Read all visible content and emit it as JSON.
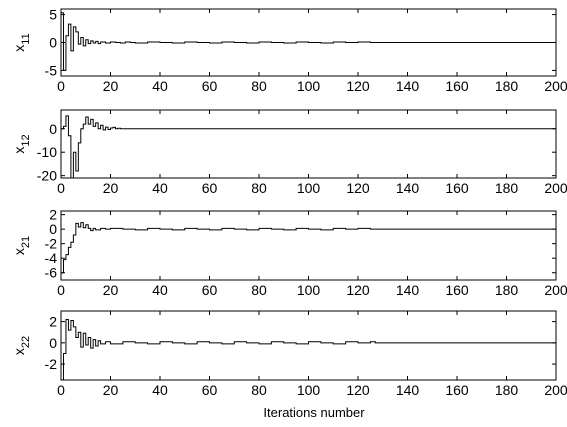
{
  "chart_data": [
    {
      "type": "line",
      "ylabel": "x",
      "ylabel_sub": "11",
      "xlim": [
        0,
        200
      ],
      "ylim": [
        -6,
        6
      ],
      "xticks": [
        0,
        20,
        40,
        60,
        80,
        100,
        120,
        140,
        160,
        180,
        200
      ],
      "yticks": [
        -5,
        0,
        5
      ],
      "grid": false,
      "series": [
        {
          "style": "stairs",
          "x": [
            0,
            1,
            2,
            3,
            4,
            5,
            6,
            7,
            8,
            9,
            10,
            11,
            12,
            13,
            14,
            15,
            16,
            18,
            20,
            22,
            24,
            26,
            28,
            30,
            35,
            40,
            45,
            50,
            55,
            60,
            65,
            70,
            75,
            80,
            85,
            90,
            95,
            100,
            105,
            110,
            115,
            120,
            125,
            127,
            200
          ],
          "y": [
            5.3,
            -5.0,
            1.2,
            3.3,
            -1.5,
            2.8,
            1.9,
            -0.3,
            0.9,
            -0.6,
            0.5,
            -0.2,
            0.3,
            -0.1,
            0.2,
            -0.2,
            0.1,
            -0.1,
            0.1,
            0,
            -0.1,
            0.1,
            0,
            -0.1,
            0.1,
            0,
            -0.1,
            0.1,
            0,
            -0.1,
            0.1,
            0,
            -0.1,
            0.1,
            0,
            -0.1,
            0.1,
            0,
            -0.1,
            0.1,
            0,
            0.1,
            0,
            0,
            0
          ]
        }
      ]
    },
    {
      "type": "line",
      "ylabel": "x",
      "ylabel_sub": "12",
      "xlim": [
        0,
        200
      ],
      "ylim": [
        -21,
        8
      ],
      "xticks": [
        0,
        20,
        40,
        60,
        80,
        100,
        120,
        140,
        160,
        180,
        200
      ],
      "yticks": [
        -20,
        -10,
        0
      ],
      "grid": false,
      "series": [
        {
          "style": "stairs",
          "x": [
            0,
            1,
            2,
            3,
            4,
            5,
            6,
            7,
            8,
            9,
            10,
            11,
            12,
            13,
            14,
            15,
            16,
            17,
            18,
            19,
            20,
            21,
            22,
            23,
            24,
            200
          ],
          "y": [
            0,
            1,
            5.5,
            -3,
            -21,
            -10,
            -18,
            -6,
            0,
            2,
            5,
            2,
            4,
            1,
            2.5,
            0,
            1.5,
            -0.5,
            0.7,
            -0.3,
            0.3,
            0.6,
            0,
            0.2,
            0,
            0
          ]
        }
      ]
    },
    {
      "type": "line",
      "ylabel": "x",
      "ylabel_sub": "21",
      "xlim": [
        0,
        200
      ],
      "ylim": [
        -7,
        2.5
      ],
      "xticks": [
        0,
        20,
        40,
        60,
        80,
        100,
        120,
        140,
        160,
        180,
        200
      ],
      "yticks": [
        -6,
        -4,
        -2,
        0,
        2
      ],
      "grid": false,
      "series": [
        {
          "style": "stairs",
          "x": [
            0,
            1,
            2,
            3,
            4,
            5,
            6,
            7,
            8,
            9,
            10,
            11,
            12,
            13,
            14,
            16,
            18,
            20,
            25,
            30,
            35,
            40,
            45,
            50,
            55,
            60,
            65,
            70,
            75,
            80,
            85,
            90,
            95,
            100,
            105,
            110,
            115,
            120,
            125,
            127,
            200
          ],
          "y": [
            -6.0,
            -4.2,
            -3.5,
            -2.5,
            -1.8,
            -0.8,
            0.8,
            0.3,
            0.9,
            0.2,
            0.6,
            0.1,
            -0.2,
            0.1,
            -0.1,
            0.1,
            0,
            0.1,
            0,
            -0.1,
            0.1,
            0,
            -0.1,
            0.1,
            0,
            -0.1,
            0.1,
            0,
            -0.1,
            0.1,
            0,
            -0.1,
            0.1,
            0,
            -0.1,
            0.1,
            0,
            0.1,
            0,
            0,
            0
          ]
        }
      ]
    },
    {
      "type": "line",
      "ylabel": "x",
      "ylabel_sub": "22",
      "xlim": [
        0,
        200
      ],
      "ylim": [
        -3.5,
        3
      ],
      "xticks": [
        0,
        20,
        40,
        60,
        80,
        100,
        120,
        140,
        160,
        180,
        200
      ],
      "yticks": [
        -2,
        0,
        2
      ],
      "grid": false,
      "xlabel": "Iterations number",
      "series": [
        {
          "style": "stairs",
          "x": [
            0,
            1,
            2,
            3,
            4,
            5,
            6,
            7,
            8,
            9,
            10,
            11,
            12,
            13,
            14,
            15,
            16,
            18,
            20,
            25,
            30,
            35,
            40,
            45,
            50,
            55,
            60,
            65,
            70,
            75,
            80,
            85,
            90,
            95,
            100,
            105,
            110,
            115,
            120,
            125,
            127,
            200
          ],
          "y": [
            -3.5,
            -1.0,
            2.2,
            1.2,
            2.1,
            1.5,
            0.5,
            1.0,
            -0.4,
            0.9,
            -0.2,
            0.5,
            -0.5,
            0.3,
            -0.3,
            0.2,
            -0.1,
            0.1,
            -0.1,
            0.1,
            0,
            -0.1,
            0.1,
            0,
            -0.1,
            0.1,
            0,
            -0.1,
            0.1,
            0,
            -0.1,
            0.1,
            0,
            -0.1,
            0.1,
            0,
            -0.1,
            0.1,
            0,
            0.1,
            0,
            0
          ]
        }
      ]
    }
  ]
}
